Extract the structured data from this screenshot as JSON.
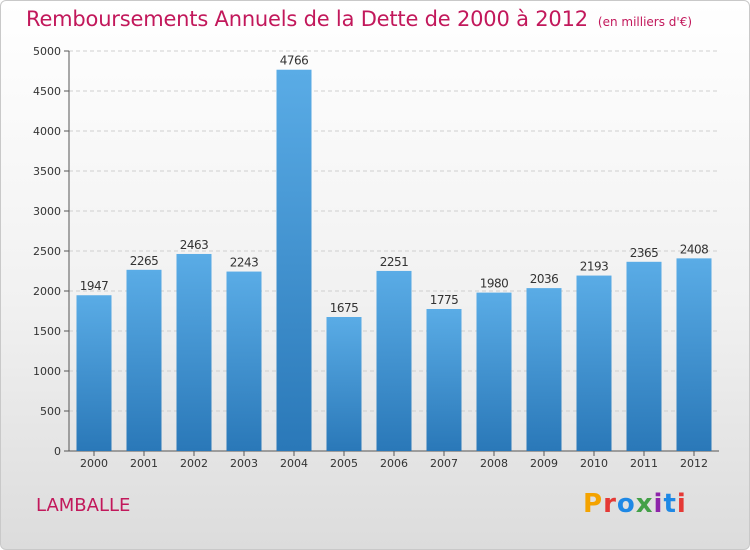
{
  "header": {
    "title": "Remboursements Annuels de la Dette de 2000 à 2012",
    "subtitle": "(en milliers d'€)"
  },
  "footer": {
    "city": "LAMBALLE",
    "logo": "Proxiti",
    "logo_colors": [
      "#f4a300",
      "#e53935",
      "#1e88e5",
      "#43a047",
      "#8e24aa",
      "#1e88e5",
      "#e53935"
    ]
  },
  "chart_data": {
    "type": "bar",
    "categories": [
      "2000",
      "2001",
      "2002",
      "2003",
      "2004",
      "2005",
      "2006",
      "2007",
      "2008",
      "2009",
      "2010",
      "2011",
      "2012"
    ],
    "values": [
      1947,
      2265,
      2463,
      2243,
      4766,
      1675,
      2251,
      1775,
      1980,
      2036,
      2193,
      2365,
      2408
    ],
    "yticks": [
      0,
      500,
      1000,
      1500,
      2000,
      2500,
      3000,
      3500,
      4000,
      4500,
      5000
    ],
    "ylim": [
      0,
      5000
    ],
    "grid": true,
    "bar_color_top": "#5aace6",
    "bar_color_bottom": "#2a78b8",
    "title": "Remboursements Annuels de la Dette de 2000 à 2012",
    "xlabel": "",
    "ylabel": ""
  }
}
